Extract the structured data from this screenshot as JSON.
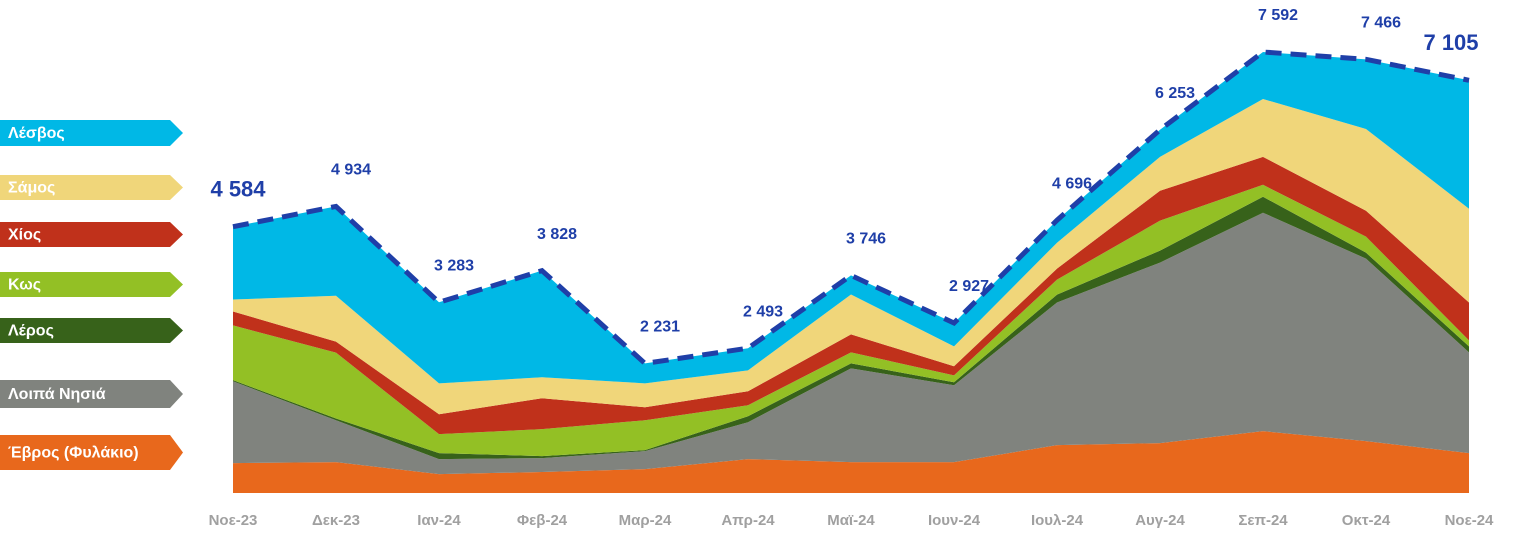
{
  "chart_data": {
    "type": "stacked-area",
    "categories": [
      "Νοε-23",
      "Δεκ-23",
      "Ιαν-24",
      "Φεβ-24",
      "Μαρ-24",
      "Απρ-24",
      "Μαϊ-24",
      "Ιουν-24",
      "Ιουλ-24",
      "Αυγ-24",
      "Σεπ-24",
      "Οκτ-24",
      "Νοε-24"
    ],
    "series": [
      {
        "name": "Έβρος (Φυλάκιο)",
        "color": "#e8681c",
        "values": [
          515,
          532,
          326,
          361,
          412,
          584,
          532,
          532,
          824,
          859,
          1065,
          893,
          687
        ]
      },
      {
        "name": "Λοιπά Νησιά",
        "color": "#80837e",
        "values": [
          1408,
          721,
          258,
          240,
          309,
          635,
          1614,
          1322,
          2455,
          3108,
          3760,
          3142,
          1734
        ]
      },
      {
        "name": "Λέρος",
        "color": "#37621a",
        "values": [
          20,
          30,
          103,
          34,
          17,
          103,
          86,
          52,
          137,
          206,
          275,
          103,
          103
        ]
      },
      {
        "name": "Κως",
        "color": "#93c025",
        "values": [
          942,
          1133,
          326,
          464,
          515,
          189,
          189,
          120,
          258,
          515,
          206,
          275,
          103
        ]
      },
      {
        "name": "Χίος",
        "color": "#c0311b",
        "values": [
          240,
          189,
          343,
          532,
          223,
          240,
          309,
          155,
          189,
          515,
          481,
          446,
          652
        ]
      },
      {
        "name": "Σάμος",
        "color": "#f0d67a",
        "values": [
          206,
          790,
          532,
          361,
          412,
          361,
          687,
          343,
          446,
          584,
          996,
          1408,
          1614
        ]
      },
      {
        "name": "Λέσβος",
        "color": "#00b8e6",
        "values": [
          1253,
          1539,
          1395,
          1836,
          343,
          381,
          329,
          403,
          387,
          466,
          809,
          1199,
          2212
        ]
      }
    ],
    "totals": {
      "color": "#1f3fa8",
      "values": [
        4584,
        4934,
        3283,
        3828,
        2231,
        2493,
        3746,
        2927,
        4696,
        6253,
        7592,
        7466,
        7105
      ],
      "value_labels": [
        "4 584",
        "4 934",
        "3 283",
        "3 828",
        "2 231",
        "2 493",
        "3 746",
        "2 927",
        "4 696",
        "6 253",
        "7 592",
        "7 466",
        "7 105"
      ]
    }
  }
}
